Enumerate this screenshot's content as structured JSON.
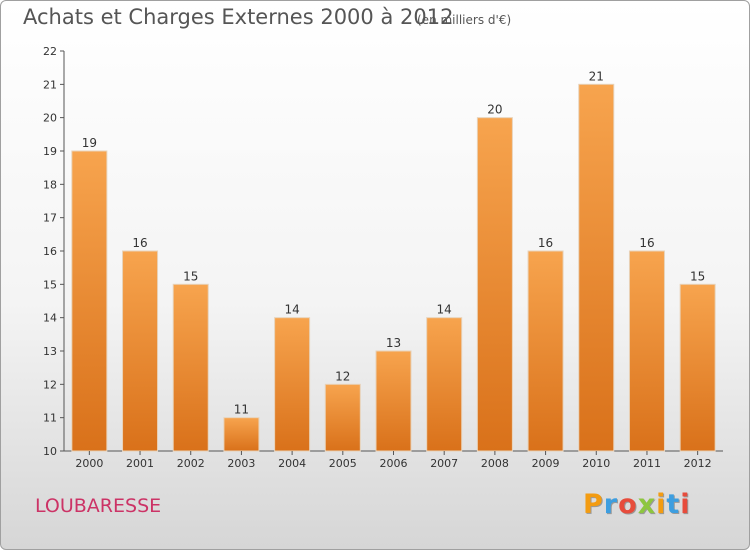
{
  "chart_data": {
    "type": "bar",
    "title": "Achats et Charges Externes 2000 à 2012",
    "subtitle": "(en milliers d'€)",
    "categories": [
      "2000",
      "2001",
      "2002",
      "2003",
      "2004",
      "2005",
      "2006",
      "2007",
      "2008",
      "2009",
      "2010",
      "2011",
      "2012"
    ],
    "values": [
      19,
      16,
      15,
      11,
      14,
      12,
      13,
      14,
      20,
      16,
      21,
      16,
      15
    ],
    "data_labels": [
      "19",
      "16",
      "15",
      "11",
      "14",
      "12",
      "13",
      "14",
      "20",
      "16",
      "21",
      "16",
      "15"
    ],
    "ylim": [
      10,
      22
    ],
    "yticks": [
      "10",
      "11",
      "12",
      "13",
      "14",
      "15",
      "16",
      "17",
      "18",
      "19",
      "20",
      "21",
      "22"
    ],
    "grid": false,
    "bar_color_top": "#f7a44e",
    "bar_color_bottom": "#d9711a"
  },
  "footer": {
    "commune": "LOUBARESSE",
    "logo_letters": [
      "P",
      "r",
      "o",
      "x",
      "i",
      "t",
      "i"
    ],
    "logo_colors": [
      "#f39c12",
      "#3d9ee0",
      "#e74c3c",
      "#8dc63f",
      "#f39c12",
      "#3d9ee0",
      "#e74c3c"
    ]
  }
}
